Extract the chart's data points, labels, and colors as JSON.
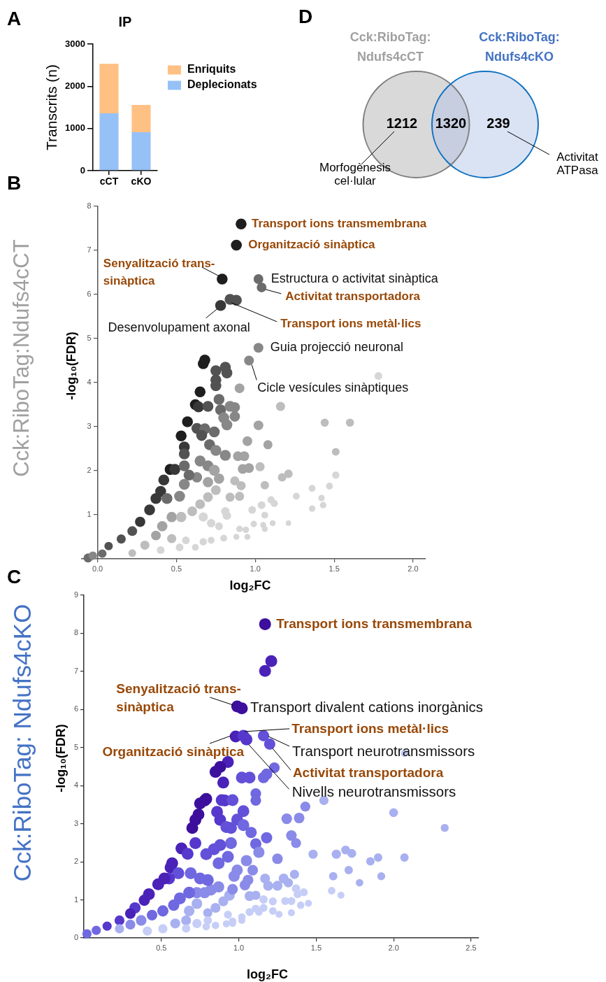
{
  "chart_data": [
    {
      "type": "bar",
      "title": "IP",
      "annotations": [
        "A"
      ],
      "ylabel": "Transcrits (n)",
      "categories": [
        "cCT",
        "cKO"
      ],
      "series": [
        {
          "name": "Deplecionats",
          "color": "#96c1f7",
          "values": [
            1360,
            910
          ]
        },
        {
          "name": "Enriquits",
          "color": "#ffc084",
          "values": [
            1170,
            650
          ]
        }
      ],
      "stacked": true,
      "ylim": [
        0,
        3000
      ],
      "yticks": [
        0,
        1000,
        2000,
        3000
      ],
      "legend": "right",
      "grid": false
    },
    {
      "type": "other",
      "annotations": [
        "D",
        "Morfogènesis cel·lular",
        "Activitat ATPasa"
      ],
      "categories": [
        "Cck:RiboTag: Ndufs4cCT",
        null,
        "Cck:RiboTag: Ndufs4cKO"
      ],
      "values": [
        1212,
        1320,
        239
      ],
      "colors": [
        "#d9d9d9",
        "#c6cee0",
        "#dae3f3"
      ],
      "data_labels": true
    },
    {
      "type": "bubble",
      "title": "Cck:RiboTag:Ndufs4cCT",
      "annotations": [
        "B",
        {
          "text": "Transport ions transmembrana",
          "x": 0.91,
          "y": 7.6
        },
        {
          "text": "Organització sinàptica",
          "x": 0.88,
          "y": 7.12
        },
        {
          "text": "Senyalització trans-sinàptica",
          "x": 0.79,
          "y": 6.35
        },
        {
          "text": "Estructura o activitat sinàptica",
          "x": 1.02,
          "y": 6.35
        },
        {
          "text": "Activitat transportadora",
          "x": 1.04,
          "y": 6.16
        },
        {
          "text": "Desenvolupament axonal",
          "x": 0.78,
          "y": 5.75
        },
        {
          "text": "Transport ions metàl·lics",
          "x": 0.84,
          "y": 5.89
        },
        {
          "text": "Guia projecció neuronal",
          "x": 1.02,
          "y": 4.79
        },
        {
          "text": "Cicle vesícules sinàptiques",
          "x": 0.96,
          "y": 4.5
        }
      ],
      "xlabel": "log₂FC",
      "ylabel": "-log₁₀(FDR)",
      "xlim": [
        -0.1,
        2.08
      ],
      "ylim": [
        0,
        8
      ],
      "xticks": [
        {
          "value": 0,
          "label": "0.0"
        },
        0.5,
        {
          "value": 1,
          "label": "1.0"
        },
        1.5,
        {
          "value": 2,
          "label": "2.0"
        }
      ],
      "yticks": [
        1,
        2,
        3,
        4,
        5,
        6,
        7,
        8
      ],
      "grid": false,
      "series": [
        {
          "x": [
            0.91,
            0.88,
            0.79,
            1.02,
            1.04,
            0.78,
            0.84,
            0.88,
            1.02,
            0.96,
            1.78,
            0.68,
            0.67,
            0.75,
            0.81,
            0.82,
            0.75,
            0.75,
            0.9,
            0.65,
            0.62,
            0.64,
            0.7,
            0.77,
            0.78,
            0.84,
            0.87,
            0.8,
            0.87,
            0.82,
            0.57,
            0.53,
            0.63,
            0.68,
            0.74,
            0.66,
            0.71,
            0.75,
            0.81,
            0.55,
            0.55,
            0.46,
            0.49,
            0.42,
            0.4,
            0.37,
            0.33,
            0.27,
            0.22,
            0.15,
            0.07,
            0.65,
            0.7,
            0.74,
            0.77,
            0.63,
            0.7,
            0.55,
            0.58,
            0.55,
            0.52,
            0.95,
            1.08,
            1.02,
            1.16,
            1.44,
            1.6,
            1.51,
            0.89,
            0.93,
            0.92,
            0.96,
            1.03,
            0.87,
            0.91,
            0.75,
            0.7,
            0.65,
            0.84,
            0.9,
            1.06,
            1.17,
            1.21,
            1.51,
            1.47,
            1.36,
            1.26,
            1.42,
            1.43,
            1.36,
            1.1,
            1.12,
            1.04,
            0.98,
            0.81,
            0.82,
            1.06,
            0.99,
            1.05,
            1.11,
            1.21,
            1.06,
            0.9,
            0.94,
            0.88,
            0.95,
            0.6,
            0.67,
            0.72,
            0.77,
            0.8,
            0.56,
            0.62,
            0.67,
            0.72,
            0.44,
            0.47,
            0.41,
            0.37,
            0.3,
            0.47,
            0.53,
            0.52,
            0.4,
            0.22,
            -0.06,
            -0.03,
            0.03
          ],
          "values": [
            7.6,
            7.12,
            6.35,
            6.35,
            6.16,
            5.75,
            5.89,
            5.87,
            4.79,
            4.5,
            4.15,
            4.51,
            4.43,
            4.27,
            4.35,
            4.22,
            4.06,
            3.93,
            3.87,
            3.79,
            3.5,
            3.45,
            3.46,
            3.62,
            3.38,
            3.46,
            3.44,
            3.2,
            3.23,
            3.04,
            3.11,
            2.79,
            2.96,
            2.95,
            2.88,
            2.8,
            2.59,
            2.46,
            2.35,
            2.54,
            2.38,
            2.03,
            2.03,
            1.79,
            1.53,
            1.37,
            1.11,
            0.84,
            0.63,
            0.45,
            0.29,
            2.22,
            2.11,
            2.01,
            1.82,
            1.85,
            1.74,
            2.11,
            1.9,
            1.69,
            1.42,
            2.67,
            2.59,
            3.03,
            3.46,
            3.09,
            3.09,
            2.43,
            2.33,
            2.33,
            2.04,
            2.06,
            2.09,
            1.77,
            1.66,
            1.56,
            1.4,
            1.24,
            1.4,
            1.42,
            1.67,
            1.85,
            1.93,
            1.9,
            1.65,
            1.6,
            1.42,
            1.38,
            1.22,
            1.14,
            1.34,
            1.26,
            1.22,
            1.11,
            1.08,
            0.98,
            0.99,
            0.79,
            0.77,
            0.81,
            0.81,
            0.68,
            0.68,
            0.66,
            0.5,
            0.5,
            1.08,
            0.95,
            0.81,
            0.74,
            0.47,
            0.42,
            0.26,
            0.39,
            0.42,
            1.37,
            0.95,
            0.74,
            0.53,
            0.31,
            0.46,
            0.95,
            0.26,
            0.2,
            0.13,
            0.02,
            0.07,
            0.12
          ],
          "sizes": [
            1,
            1,
            1,
            0.8,
            0.8,
            1,
            1,
            1,
            0.8,
            0.8,
            0.5,
            1,
            1,
            1,
            1,
            1,
            1,
            1,
            0.8,
            1,
            1,
            1,
            1,
            1,
            1,
            1,
            0.9,
            1,
            0.9,
            1,
            1,
            1,
            1,
            1,
            1,
            1,
            1,
            1,
            1,
            1,
            1,
            1,
            1,
            1,
            1,
            1,
            1,
            0.9,
            0.8,
            0.7,
            0.6,
            1,
            1,
            1,
            0.9,
            0.9,
            0.9,
            1,
            1,
            1,
            1,
            0.8,
            0.7,
            0.8,
            0.7,
            0.55,
            0.55,
            0.5,
            0.8,
            0.8,
            0.8,
            0.8,
            0.7,
            0.7,
            0.7,
            0.8,
            0.8,
            0.8,
            0.7,
            0.7,
            0.6,
            0.6,
            0.6,
            0.45,
            0.4,
            0.4,
            0.4,
            0.35,
            0.35,
            0.35,
            0.45,
            0.45,
            0.5,
            0.5,
            0.6,
            0.6,
            0.4,
            0.35,
            0.3,
            0.3,
            0.25,
            0.3,
            0.35,
            0.35,
            0.3,
            0.3,
            0.8,
            0.7,
            0.6,
            0.5,
            0.4,
            0.5,
            0.4,
            0.45,
            0.4,
            1,
            0.9,
            0.9,
            0.8,
            0.7,
            0.7,
            0.9,
            0.5,
            0.5,
            0.5,
            0.7,
            0.6,
            0.6
          ],
          "colors": [
            "#1e1e1e",
            "#1e1e1e",
            "#1e1e1e",
            "#6b6b6b",
            "#6b6b6b",
            "#383838",
            "#525252",
            "#525252",
            "#878787",
            "#878787",
            "#d6d6d6",
            "#1e1e1e",
            "#1e1e1e",
            "#525252",
            "#525252",
            "#525252",
            "#525252",
            "#525252",
            "#a3a3a3",
            "#1e1e1e",
            "#1e1e1e",
            "#383838",
            "#525252",
            "#6b6b6b",
            "#6b6b6b",
            "#878787",
            "#878787",
            "#878787",
            "#878787",
            "#878787",
            "#1e1e1e",
            "#1e1e1e",
            "#525252",
            "#6b6b6b",
            "#6b6b6b",
            "#525252",
            "#6b6b6b",
            "#878787",
            "#878787",
            "#383838",
            "#525252",
            "#1e1e1e",
            "#383838",
            "#383838",
            "#383838",
            "#383838",
            "#383838",
            "#383838",
            "#525252",
            "#525252",
            "#525252",
            "#878787",
            "#878787",
            "#a3a3a3",
            "#a3a3a3",
            "#878787",
            "#a3a3a3",
            "#6b6b6b",
            "#6b6b6b",
            "#878787",
            "#878787",
            "#a3a3a3",
            "#a3a3a3",
            "#a3a3a3",
            "#bdbdbd",
            "#bdbdbd",
            "#bdbdbd",
            "#bdbdbd",
            "#a3a3a3",
            "#a3a3a3",
            "#a3a3a3",
            "#a3a3a3",
            "#bdbdbd",
            "#bdbdbd",
            "#bdbdbd",
            "#bdbdbd",
            "#bdbdbd",
            "#bdbdbd",
            "#bdbdbd",
            "#bdbdbd",
            "#bdbdbd",
            "#bdbdbd",
            "#bdbdbd",
            "#d6d6d6",
            "#d6d6d6",
            "#d6d6d6",
            "#d6d6d6",
            "#d6d6d6",
            "#d6d6d6",
            "#d6d6d6",
            "#d6d6d6",
            "#d6d6d6",
            "#d6d6d6",
            "#d6d6d6",
            "#d6d6d6",
            "#d6d6d6",
            "#d6d6d6",
            "#d6d6d6",
            "#d6d6d6",
            "#d6d6d6",
            "#d6d6d6",
            "#d6d6d6",
            "#d6d6d6",
            "#d6d6d6",
            "#d6d6d6",
            "#d6d6d6",
            "#bdbdbd",
            "#d6d6d6",
            "#d6d6d6",
            "#d6d6d6",
            "#d6d6d6",
            "#d6d6d6",
            "#d6d6d6",
            "#d6d6d6",
            "#d6d6d6",
            "#6b6b6b",
            "#a3a3a3",
            "#a3a3a3",
            "#a3a3a3",
            "#bdbdbd",
            "#bdbdbd",
            "#bdbdbd",
            "#d6d6d6",
            "#d6d6d6",
            "#bdbdbd",
            "#6b6b6b",
            "#878787",
            "#6b6b6b"
          ]
        }
      ]
    },
    {
      "type": "bubble",
      "title": "Cck:RiboTag: Ndufs4cKO",
      "annotations": [
        "C",
        {
          "text": "Transport ions transmembrana",
          "x": 1.17,
          "y": 8.24
        },
        {
          "text": "Senyalització trans-sinàptica",
          "x": 0.99,
          "y": 6.08
        },
        {
          "text": "Transport divalent cations inorgànics",
          "x": 1.02,
          "y": 6.03
        },
        {
          "text": "Transport ions metàl·lics",
          "x": 1.03,
          "y": 5.31
        },
        {
          "text": "Organització sinàptica",
          "x": 0.98,
          "y": 5.29
        },
        {
          "text": "Transport neurotransmissors",
          "x": 1.16,
          "y": 5.31
        },
        {
          "text": "Activitat transportadora",
          "x": 1.2,
          "y": 5.09
        },
        {
          "text": "Nivells neurotransmissors",
          "x": 1.05,
          "y": 5.21
        }
      ],
      "xlabel": "log₂FC",
      "ylabel": "-log₁₀(FDR)",
      "xlim": [
        0,
        2.55
      ],
      "ylim": [
        0,
        9
      ],
      "xticks": [
        0.5,
        {
          "value": 1,
          "label": "1.0"
        },
        1.5,
        {
          "value": 2,
          "label": "2.0"
        },
        2.5
      ],
      "yticks": [
        0,
        1,
        2,
        3,
        4,
        5,
        6,
        7,
        8,
        9
      ],
      "grid": false,
      "series": [
        {
          "x": [
            1.17,
            1.21,
            1.17,
            0.99,
            1.02,
            0.98,
            1.03,
            1.05,
            1.16,
            1.2,
            2.07,
            0.93,
            0.88,
            0.85,
            0.9,
            1.02,
            1.07,
            1.16,
            1.18,
            1.23,
            1.11,
            1.11,
            0.78,
            0.79,
            0.75,
            0.89,
            0.91,
            0.96,
            1.55,
            1.43,
            2,
            2.33,
            0.74,
            0.72,
            0.7,
            0.86,
            0.88,
            0.92,
            0.95,
            1.03,
            0.99,
            1.03,
            1.08,
            1.31,
            1.39,
            1.34,
            1.37,
            1.18,
            0.95,
            1.11,
            1.13,
            0.72,
            0.63,
            0.88,
            0.67,
            0.57,
            0.56,
            0.79,
            0.84,
            0.93,
            0.87,
            1.05,
            1.25,
            1.48,
            1.63,
            1.69,
            1.73,
            1.85,
            1.9,
            2.07,
            1.71,
            1.61,
            1.92,
            1.78,
            1.6,
            1.66,
            0.99,
            1.09,
            0.97,
            1.17,
            1.19,
            1.25,
            1.29,
            1.32,
            1.36,
            1.37,
            1.42,
            1.38,
            1.06,
            1.04,
            1.07,
            1.11,
            1.16,
            1.22,
            1.3,
            1.34,
            1.4,
            1.45,
            1.11,
            1.16,
            1.22,
            1.26,
            1.34,
            1.07,
            1.02,
            0.96,
            0.92,
            0.85,
            0.8,
            0.85,
            0.9,
            0.94,
            0.96,
            0.87,
            0.82,
            0.78,
            0.73,
            0.8,
            0.75,
            0.69,
            0.61,
            0.55,
            0.52,
            0.48,
            0.42,
            0.39,
            0.33,
            0.3,
            0.23,
            0.15,
            0.08,
            0.02,
            0.68,
            0.62,
            0.58,
            0.51,
            0.44,
            0.37,
            0.3,
            0.23,
            0.68,
            0.73,
            0.66,
            0.73,
            0.8,
            0.59,
            0.51,
            0.41,
            0.66,
            0.79,
            0.93,
            0.96,
            1.02,
            1.13
          ],
          "values": [
            8.24,
            7.27,
            7.01,
            6.08,
            6.03,
            5.29,
            5.31,
            5.21,
            5.31,
            5.09,
            4.85,
            4.62,
            4.49,
            4.36,
            4.08,
            4.21,
            4.21,
            4.21,
            4.3,
            4.47,
            3.79,
            3.61,
            3.61,
            3.65,
            3.53,
            3.62,
            3.61,
            3.62,
            3.61,
            3.45,
            3.29,
            2.89,
            3.24,
            3.1,
            2.89,
            3.31,
            3.1,
            2.91,
            2.89,
            3.33,
            3.11,
            2.96,
            2.77,
            3.13,
            3.15,
            2.69,
            2.49,
            2.63,
            2.49,
            2.47,
            2.25,
            2.49,
            2.35,
            2.44,
            2.21,
            1.96,
            1.85,
            2.2,
            2.33,
            2.13,
            1.96,
            2.03,
            2.08,
            2.2,
            2.2,
            2.31,
            2.22,
            2.01,
            2.11,
            2.11,
            1.78,
            1.62,
            1.62,
            1.45,
            1.24,
            1.12,
            1.78,
            1.78,
            1.62,
            1.56,
            1.37,
            1.37,
            1.56,
            1.45,
            1.67,
            1.3,
            1.2,
            1.15,
            1.52,
            1.39,
            1.1,
            1.12,
            1.01,
            0.96,
            0.97,
            0.97,
            0.86,
            0.91,
            0.77,
            0.79,
            0.71,
            0.62,
            0.66,
            0.68,
            0.55,
            0.44,
            0.37,
            0.33,
            0.66,
            0.79,
            0.96,
            1.12,
            1.28,
            1.34,
            1.26,
            1.19,
            1.19,
            1.52,
            1.56,
            1.7,
            1.7,
            1.56,
            1.56,
            1.41,
            1.15,
            0.99,
            0.79,
            0.64,
            0.46,
            0.31,
            0.2,
            0.11,
            1.19,
            1.04,
            0.86,
            0.71,
            0.6,
            0.46,
            0.35,
            0.24,
            0.71,
            0.9,
            0.46,
            0.38,
            0.46,
            0.38,
            0.24,
            0.18,
            0.25,
            0.3,
            0.61,
            0.38,
            0.46,
            0.68
          ],
          "sizes": [
            1,
            1,
            1,
            1,
            1,
            1,
            1,
            1,
            0.9,
            0.9,
            0.4,
            1,
            1,
            1,
            1,
            1,
            1,
            0.9,
            0.9,
            0.8,
            0.8,
            0.8,
            1,
            1,
            1,
            1,
            1,
            1,
            0.6,
            0.7,
            0.55,
            0.45,
            1,
            1,
            1,
            1,
            1,
            1,
            1,
            1,
            1,
            1,
            0.9,
            0.8,
            0.8,
            0.8,
            0.7,
            0.9,
            1,
            0.9,
            0.9,
            1,
            1,
            1,
            1,
            1,
            1,
            1,
            1,
            1,
            1,
            0.9,
            0.8,
            0.6,
            0.6,
            0.55,
            0.55,
            0.5,
            0.5,
            0.5,
            0.5,
            0.5,
            0.45,
            0.4,
            0.4,
            0.35,
            0.9,
            0.8,
            0.9,
            0.7,
            0.7,
            0.7,
            0.7,
            0.6,
            0.6,
            0.5,
            0.45,
            0.45,
            0.8,
            0.8,
            0.7,
            0.6,
            0.5,
            0.45,
            0.45,
            0.45,
            0.4,
            0.35,
            0.45,
            0.45,
            0.4,
            0.35,
            0.35,
            0.45,
            0.4,
            0.4,
            0.35,
            0.4,
            0.6,
            0.7,
            0.7,
            0.8,
            0.8,
            0.9,
            0.9,
            0.9,
            0.9,
            1,
            1,
            1,
            1,
            1,
            1,
            1,
            1,
            0.9,
            0.9,
            0.8,
            0.7,
            0.6,
            0.6,
            0.6,
            1,
            1,
            0.9,
            0.9,
            0.8,
            0.8,
            0.7,
            0.6,
            0.8,
            0.8,
            0.7,
            0.6,
            0.5,
            0.7,
            0.6,
            0.6,
            0.5,
            0.4,
            0.45,
            0.35,
            0.35,
            0.4
          ],
          "colors": [
            "#3c0f9c",
            "#4a22b8",
            "#4a22b8",
            "#3c0f9c",
            "#3c0f9c",
            "#4a22b8",
            "#5638cc",
            "#5638cc",
            "#6250d8",
            "#6250d8",
            "#c6cef7",
            "#4a22b8",
            "#3c0f9c",
            "#3c0f9c",
            "#4a22b8",
            "#6250d8",
            "#6250d8",
            "#7068e0",
            "#7068e0",
            "#7068e0",
            "#7068e0",
            "#7068e0",
            "#3c0f9c",
            "#3c0f9c",
            "#3c0f9c",
            "#5638cc",
            "#5638cc",
            "#6250d8",
            "#a8b0f0",
            "#8a8ae8",
            "#a8b0f0",
            "#a8b0f0",
            "#3c0f9c",
            "#3c0f9c",
            "#3c0f9c",
            "#5638cc",
            "#5638cc",
            "#6250d8",
            "#6250d8",
            "#6250d8",
            "#6250d8",
            "#7068e0",
            "#7068e0",
            "#8a8ae8",
            "#8a8ae8",
            "#8a8ae8",
            "#8a8ae8",
            "#7068e0",
            "#7068e0",
            "#7068e0",
            "#8a8ae8",
            "#5638cc",
            "#4a22b8",
            "#6250d8",
            "#5638cc",
            "#4a22b8",
            "#4a22b8",
            "#6250d8",
            "#6250d8",
            "#7068e0",
            "#7068e0",
            "#8a8ae8",
            "#8a8ae8",
            "#a8b0f0",
            "#a8b0f0",
            "#a8b0f0",
            "#a8b0f0",
            "#a8b0f0",
            "#a8b0f0",
            "#a8b0f0",
            "#a8b0f0",
            "#a8b0f0",
            "#a8b0f0",
            "#a8b0f0",
            "#c6cef7",
            "#c6cef7",
            "#8a8ae8",
            "#8a8ae8",
            "#8a8ae8",
            "#a8b0f0",
            "#a8b0f0",
            "#a8b0f0",
            "#a8b0f0",
            "#a8b0f0",
            "#a8b0f0",
            "#c6cef7",
            "#c6cef7",
            "#c6cef7",
            "#8a8ae8",
            "#8a8ae8",
            "#a8b0f0",
            "#a8b0f0",
            "#c6cef7",
            "#c6cef7",
            "#c6cef7",
            "#c6cef7",
            "#c6cef7",
            "#c6cef7",
            "#c6cef7",
            "#c6cef7",
            "#c6cef7",
            "#c6cef7",
            "#c6cef7",
            "#c6cef7",
            "#c6cef7",
            "#c6cef7",
            "#c6cef7",
            "#c6cef7",
            "#a8b0f0",
            "#a8b0f0",
            "#a8b0f0",
            "#a8b0f0",
            "#8a8ae8",
            "#8a8ae8",
            "#8a8ae8",
            "#8a8ae8",
            "#8a8ae8",
            "#7068e0",
            "#7068e0",
            "#7068e0",
            "#6250d8",
            "#5638cc",
            "#4a22b8",
            "#4a22b8",
            "#4a22b8",
            "#4a22b8",
            "#5638cc",
            "#4a22b8",
            "#5638cc",
            "#5638cc",
            "#7068e0",
            "#7068e0",
            "#7068e0",
            "#7068e0",
            "#7068e0",
            "#7068e0",
            "#7068e0",
            "#8a8ae8",
            "#8a8ae8",
            "#a8b0f0",
            "#a8b0f0",
            "#a8b0f0",
            "#a8b0f0",
            "#c6cef7",
            "#c6cef7",
            "#a8b0f0",
            "#c6cef7",
            "#c6cef7",
            "#c6cef7",
            "#c6cef7",
            "#c6cef7",
            "#c6cef7",
            "#c6cef7",
            "#c6cef7"
          ]
        }
      ]
    }
  ]
}
